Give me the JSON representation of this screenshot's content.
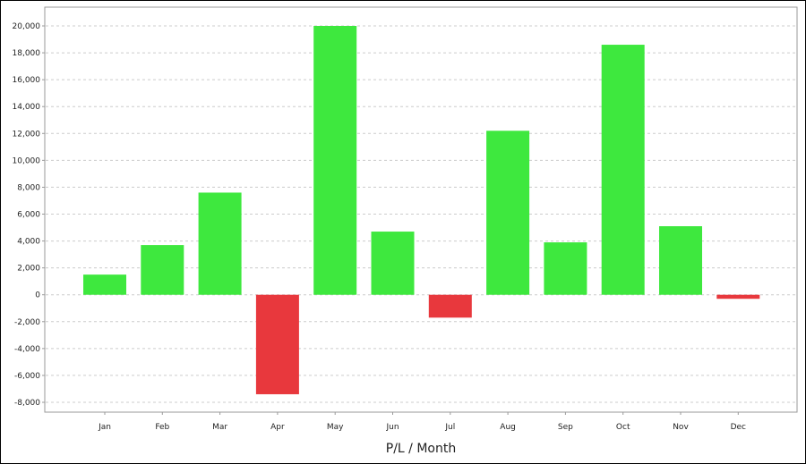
{
  "chart_data": {
    "type": "bar",
    "title": "",
    "xlabel": "P/L / Month",
    "ylabel": "",
    "categories": [
      "Jan",
      "Feb",
      "Mar",
      "Apr",
      "May",
      "Jun",
      "Jul",
      "Aug",
      "Sep",
      "Oct",
      "Nov",
      "Dec"
    ],
    "values": [
      1500,
      3700,
      7600,
      -7400,
      20000,
      4700,
      -1700,
      12200,
      3900,
      18600,
      5100,
      -300
    ],
    "ylim": [
      -8000,
      20000
    ],
    "yticks": [
      -8000,
      -6000,
      -4000,
      -2000,
      0,
      2000,
      4000,
      6000,
      8000,
      10000,
      12000,
      14000,
      16000,
      18000,
      20000
    ],
    "ytick_labels": [
      "-8,000",
      "-6,000",
      "-4,000",
      "-2,000",
      "0",
      "2,000",
      "4,000",
      "6,000",
      "8,000",
      "10,000",
      "12,000",
      "14,000",
      "16,000",
      "18,000",
      "20,000"
    ],
    "grid": true,
    "colors": {
      "positive": "#3ee83e",
      "negative": "#e8383d",
      "grid": "#cccccc",
      "axis": "#999999"
    }
  }
}
